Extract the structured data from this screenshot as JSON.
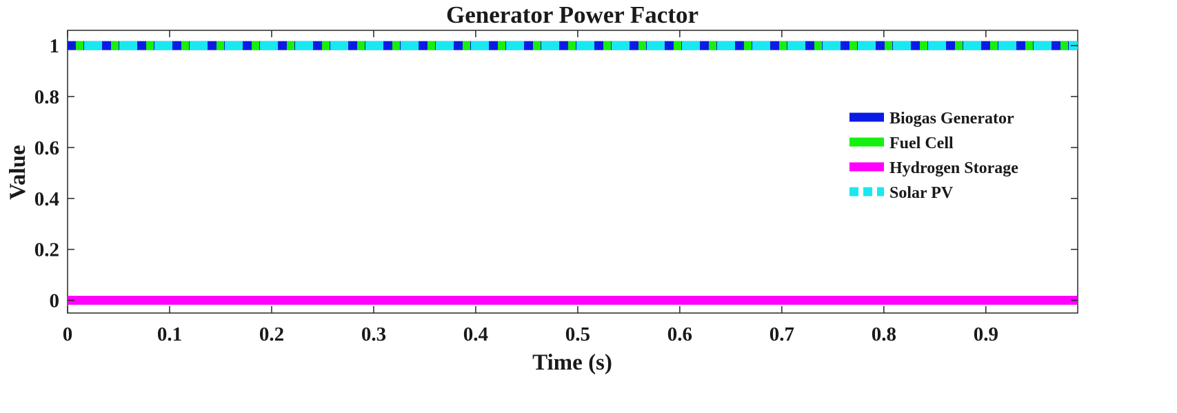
{
  "chart_data": {
    "type": "line",
    "title": "Generator Power Factor",
    "xlabel": "Time (s)",
    "ylabel": "Value",
    "xlim": [
      0,
      0.99
    ],
    "ylim": [
      -0.05,
      1.06
    ],
    "xticks": [
      0,
      0.1,
      0.2,
      0.3,
      0.4,
      0.5,
      0.6,
      0.7,
      0.8,
      0.9
    ],
    "xtick_labels": [
      "0",
      "0.1",
      "0.2",
      "0.3",
      "0.4",
      "0.5",
      "0.6",
      "0.7",
      "0.8",
      "0.9"
    ],
    "yticks": [
      0,
      0.2,
      0.4,
      0.6,
      0.8,
      1
    ],
    "ytick_labels": [
      "0",
      "0.2",
      "0.4",
      "0.6",
      "0.8",
      "1"
    ],
    "grid": false,
    "legend_position": "right",
    "series": [
      {
        "name": "Biogas Generator",
        "x": [
          0,
          0.99
        ],
        "values": [
          1,
          1
        ],
        "color": "#0a1be6",
        "style": "solid"
      },
      {
        "name": "Fuel Cell",
        "x": [
          0,
          0.99
        ],
        "values": [
          1,
          1
        ],
        "color": "#17f00f",
        "style": "solid"
      },
      {
        "name": "Hydrogen Storage",
        "x": [
          0,
          0.99
        ],
        "values": [
          0,
          0
        ],
        "color": "#ff00ff",
        "style": "solid"
      },
      {
        "name": "Solar PV",
        "x": [
          0,
          0.99
        ],
        "values": [
          1,
          1
        ],
        "color": "#19e8f0",
        "style": "dashed"
      }
    ]
  }
}
